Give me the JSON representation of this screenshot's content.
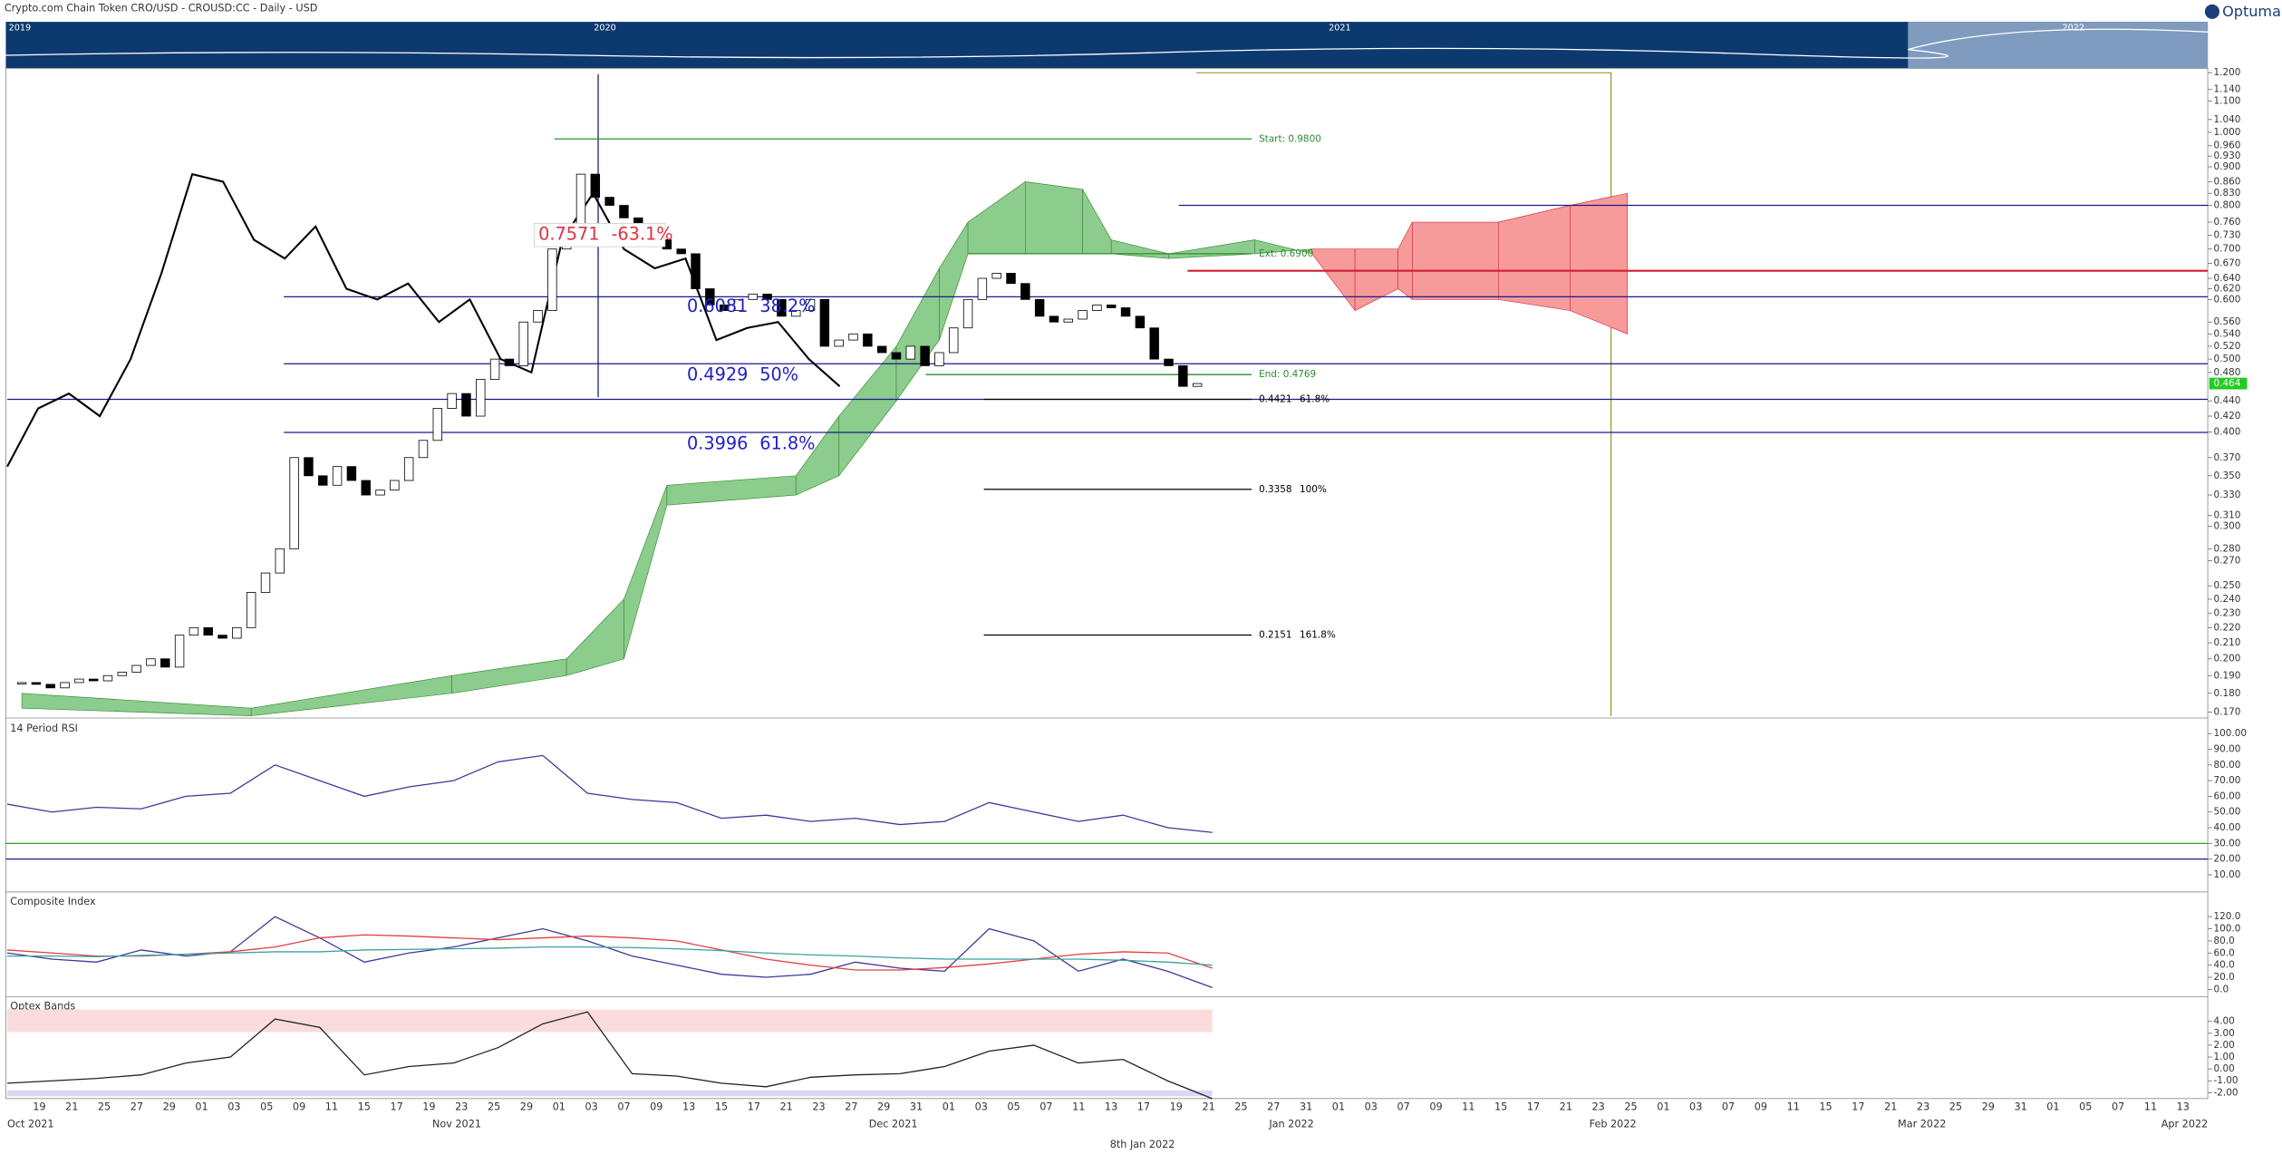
{
  "header": {
    "title": "Crypto.com Chain Token CRO/USD - CROUSD:CC - Daily - USD",
    "logo": "Optuma"
  },
  "navigator": {
    "years": [
      "2019",
      "2020",
      "2021",
      "2022"
    ]
  },
  "x_axis": {
    "days": [
      "19",
      "21",
      "25",
      "27",
      "29",
      "01",
      "03",
      "05",
      "09",
      "11",
      "15",
      "17",
      "19",
      "23",
      "25",
      "29",
      "01",
      "03",
      "07",
      "09",
      "13",
      "15",
      "17",
      "21",
      "23",
      "27",
      "29",
      "31",
      "01",
      "03",
      "05",
      "07",
      "11",
      "13",
      "17",
      "19",
      "21",
      "25",
      "27",
      "31",
      "01",
      "03",
      "07",
      "09",
      "11",
      "15",
      "17",
      "21",
      "23",
      "25",
      "01",
      "03",
      "07",
      "09",
      "11",
      "15",
      "17",
      "21",
      "23",
      "25",
      "29",
      "31",
      "01",
      "05",
      "07",
      "11",
      "13"
    ],
    "months": [
      "Oct 2021",
      "Nov 2021",
      "Dec 2021",
      "Jan 2022",
      "Feb 2022",
      "Mar 2022",
      "Apr 2022"
    ]
  },
  "footer_date": "8th Jan 2022",
  "chart_data": [
    {
      "type": "candlestick",
      "log_scale": true,
      "up_color": "#ffffff",
      "down_color": "#000000",
      "values": [
        0.186,
        0.185,
        0.183,
        0.186,
        0.188,
        0.187,
        0.19,
        0.192,
        0.196,
        0.2,
        0.195,
        0.215,
        0.22,
        0.215,
        0.213,
        0.22,
        0.245,
        0.26,
        0.28,
        0.37,
        0.35,
        0.34,
        0.36,
        0.345,
        0.33,
        0.335,
        0.345,
        0.37,
        0.39,
        0.43,
        0.45,
        0.42,
        0.47,
        0.5,
        0.49,
        0.56,
        0.58,
        0.7,
        0.75,
        0.88,
        0.82,
        0.8,
        0.77,
        0.73,
        0.72,
        0.7,
        0.69,
        0.62,
        0.59,
        0.58,
        0.6,
        0.61,
        0.6,
        0.57,
        0.58,
        0.6,
        0.52,
        0.53,
        0.54,
        0.52,
        0.51,
        0.5,
        0.52,
        0.49,
        0.51,
        0.55,
        0.6,
        0.64,
        0.65,
        0.63,
        0.6,
        0.57,
        0.56,
        0.565,
        0.58,
        0.59,
        0.585,
        0.57,
        0.55,
        0.5,
        0.49,
        0.46,
        0.464
      ],
      "last_price": 0.464,
      "last_price_color": "#22cc22",
      "ylim": [
        0.168,
        1.216
      ],
      "yticks": [
        {
          "value": 1.2,
          "label": "1.200"
        },
        {
          "value": 1.14,
          "label": "1.140"
        },
        {
          "value": 1.1,
          "label": "1.100"
        },
        {
          "value": 1.04,
          "label": "1.040"
        },
        {
          "value": 1,
          "label": "1.000"
        },
        {
          "value": 0.96,
          "label": "0.960"
        },
        {
          "value": 0.93,
          "label": "0.930"
        },
        {
          "value": 0.9,
          "label": "0.900"
        },
        {
          "value": 0.86,
          "label": "0.860"
        },
        {
          "value": 0.83,
          "label": "0.830"
        },
        {
          "value": 0.8,
          "label": "0.800"
        },
        {
          "value": 0.76,
          "label": "0.760"
        },
        {
          "value": 0.73,
          "label": "0.730"
        },
        {
          "value": 0.7,
          "label": "0.700"
        },
        {
          "value": 0.67,
          "label": "0.670"
        },
        {
          "value": 0.64,
          "label": "0.640"
        },
        {
          "value": 0.62,
          "label": "0.620"
        },
        {
          "value": 0.6,
          "label": "0.600"
        },
        {
          "value": 0.56,
          "label": "0.560"
        },
        {
          "value": 0.54,
          "label": "0.540"
        },
        {
          "value": 0.52,
          "label": "0.520"
        },
        {
          "value": 0.5,
          "label": "0.500"
        },
        {
          "value": 0.48,
          "label": "0.480"
        },
        {
          "value": 0.44,
          "label": "0.440"
        },
        {
          "value": 0.42,
          "label": "0.420"
        },
        {
          "value": 0.4,
          "label": "0.400"
        },
        {
          "value": 0.37,
          "label": "0.370"
        },
        {
          "value": 0.35,
          "label": "0.350"
        },
        {
          "value": 0.33,
          "label": "0.330"
        },
        {
          "value": 0.31,
          "label": "0.310"
        },
        {
          "value": 0.3,
          "label": "0.300"
        },
        {
          "value": 0.28,
          "label": "0.280"
        },
        {
          "value": 0.27,
          "label": "0.270"
        },
        {
          "value": 0.25,
          "label": "0.250"
        },
        {
          "value": 0.24,
          "label": "0.240"
        },
        {
          "value": 0.23,
          "label": "0.230"
        },
        {
          "value": 0.22,
          "label": "0.220"
        },
        {
          "value": 0.21,
          "label": "0.210"
        },
        {
          "value": 0.2,
          "label": "0.200"
        },
        {
          "value": 0.19,
          "label": "0.190"
        },
        {
          "value": 0.18,
          "label": "0.180"
        },
        {
          "value": 0.17,
          "label": "0.170"
        }
      ],
      "lagging_line": {
        "color": "#000000",
        "values": [
          0.36,
          0.43,
          0.45,
          0.42,
          0.5,
          0.65,
          0.88,
          0.86,
          0.72,
          0.68,
          0.75,
          0.62,
          0.6,
          0.63,
          0.56,
          0.6,
          0.5,
          0.48,
          0.72,
          0.83,
          0.7,
          0.66,
          0.68,
          0.53,
          0.55,
          0.56,
          0.5,
          0.46
        ]
      },
      "cloud": {
        "up_color": "#8ccc8c",
        "down_color": "#f79a9a",
        "x": [
          0,
          16,
          30,
          38,
          42,
          45,
          54,
          57,
          61,
          64,
          66,
          70,
          74,
          76,
          80,
          86,
          90,
          93,
          96,
          97,
          103,
          108,
          112
        ],
        "span_a": [
          0.18,
          0.172,
          0.19,
          0.2,
          0.24,
          0.34,
          0.35,
          0.42,
          0.52,
          0.66,
          0.76,
          0.86,
          0.84,
          0.72,
          0.69,
          0.72,
          0.69,
          0.58,
          0.62,
          0.6,
          0.6,
          0.58,
          0.54
        ],
        "span_b": [
          0.172,
          0.168,
          0.18,
          0.19,
          0.2,
          0.32,
          0.33,
          0.35,
          0.44,
          0.53,
          0.69,
          0.69,
          0.69,
          0.69,
          0.68,
          0.69,
          0.7,
          0.7,
          0.7,
          0.76,
          0.76,
          0.8,
          0.83
        ]
      },
      "hlines": [
        {
          "value": 0.8,
          "color": "#1a1a8c"
        },
        {
          "value": 0.605,
          "color": "#1a1a8c"
        },
        {
          "value": 0.4929,
          "color": "#1a1a8c"
        },
        {
          "value": 0.4421,
          "color": "#1a1a8c"
        },
        {
          "value": 0.3996,
          "color": "#1a1a8c"
        },
        {
          "value": 0.655,
          "color": "#d02030"
        }
      ],
      "annotations": [
        {
          "value": 0.98,
          "label": "Start: 0.9800",
          "color": "#2e8b2e"
        },
        {
          "value": 0.69,
          "label": "Ext: 0.6900",
          "color": "#2e8b2e"
        },
        {
          "value": 0.4769,
          "label": "End: 0.4769",
          "color": "#2e8b2e"
        },
        {
          "value": 0.4421,
          "label": "0.4421",
          "note": "61.8%",
          "color": "#000000"
        },
        {
          "value": 0.3358,
          "label": "0.3358",
          "note": "100%",
          "color": "#000000"
        },
        {
          "value": 0.2151,
          "label": "0.2151",
          "note": "161.8%",
          "color": "#000000"
        }
      ],
      "fib_labels": [
        {
          "value": 0.7571,
          "label": "0.7571",
          "note": "-63.1%",
          "color": "#e03040"
        },
        {
          "value": 0.6081,
          "label": "0.6081",
          "note": "38.2%",
          "color": "#2020c8"
        },
        {
          "value": 0.4929,
          "label": "0.4929",
          "note": "50%",
          "color": "#2020c8"
        },
        {
          "value": 0.3996,
          "label": "0.3996",
          "note": "61.8%",
          "color": "#2020c8"
        }
      ]
    },
    {
      "type": "line",
      "title": "14 Period RSI",
      "ylim": [
        0,
        108.5
      ],
      "yticks": [
        {
          "value": 100,
          "label": "100.00"
        },
        {
          "value": 90,
          "label": "90.00"
        },
        {
          "value": 80,
          "label": "80.00"
        },
        {
          "value": 70,
          "label": "70.00"
        },
        {
          "value": 60,
          "label": "60.00"
        },
        {
          "value": 50,
          "label": "50.00"
        },
        {
          "value": 40,
          "label": "40.00"
        },
        {
          "value": 30,
          "label": "30.00"
        },
        {
          "value": 20,
          "label": "20.00"
        },
        {
          "value": 10,
          "label": "10.00"
        }
      ],
      "hlines": [
        {
          "value": 30,
          "color": "#2e9b2e"
        },
        {
          "value": 20,
          "color": "#1a1a8c"
        }
      ],
      "series": [
        {
          "color": "#3a3a9a",
          "values": [
            55,
            50,
            53,
            52,
            60,
            62,
            80,
            70,
            60,
            66,
            70,
            82,
            86,
            62,
            58,
            56,
            46,
            48,
            44,
            46,
            42,
            44,
            56,
            50,
            44,
            48,
            40,
            37
          ]
        }
      ]
    },
    {
      "type": "line",
      "title": "Composite Index",
      "ylim": [
        -9.6,
        158.4
      ],
      "yticks": [
        {
          "value": 120,
          "label": "120.0"
        },
        {
          "value": 100,
          "label": "100.0"
        },
        {
          "value": 80,
          "label": "80.0"
        },
        {
          "value": 60,
          "label": "60.0"
        },
        {
          "value": 40,
          "label": "40.0"
        },
        {
          "value": 20,
          "label": "20.0"
        },
        {
          "value": 0,
          "label": "0.0"
        }
      ],
      "series": [
        {
          "color": "#3a3a9a",
          "values": [
            60,
            50,
            45,
            65,
            55,
            62,
            120,
            85,
            45,
            60,
            70,
            85,
            100,
            80,
            55,
            40,
            25,
            20,
            25,
            45,
            35,
            30,
            100,
            80,
            30,
            50,
            30,
            3
          ]
        },
        {
          "color": "#e04040",
          "values": [
            65,
            60,
            55,
            55,
            58,
            62,
            70,
            85,
            90,
            88,
            85,
            82,
            85,
            88,
            85,
            80,
            65,
            50,
            40,
            32,
            32,
            36,
            42,
            50,
            58,
            62,
            60,
            35
          ]
        },
        {
          "color": "#3aa0a0",
          "values": [
            55,
            55,
            54,
            56,
            58,
            60,
            62,
            62,
            65,
            66,
            67,
            68,
            70,
            70,
            69,
            67,
            64,
            60,
            57,
            55,
            52,
            50,
            50,
            50,
            50,
            48,
            45,
            40
          ]
        }
      ]
    },
    {
      "type": "line",
      "title": "Optex Bands",
      "ylim": [
        -2.49,
        5.96
      ],
      "yticks": [
        {
          "value": 4,
          "label": "4.00"
        },
        {
          "value": 3,
          "label": "3.00"
        },
        {
          "value": 2,
          "label": "2.00"
        },
        {
          "value": 1,
          "label": "1.00"
        },
        {
          "value": 0,
          "label": "0.00"
        },
        {
          "value": -1,
          "label": "-1.00"
        },
        {
          "value": -2,
          "label": "-2.00"
        }
      ],
      "bands": [
        {
          "upper": 5,
          "lower": 3.1,
          "color": "#fadcdc"
        },
        {
          "upper": -1.8,
          "lower": -2.3,
          "color": "#d8d8f4"
        }
      ],
      "series": [
        {
          "color": "#222222",
          "values": [
            -1.2,
            -1,
            -0.8,
            -0.5,
            0.5,
            1,
            4.2,
            3.5,
            -0.5,
            0.2,
            0.5,
            1.8,
            3.8,
            4.8,
            -0.4,
            -0.6,
            -1.2,
            -1.5,
            -0.7,
            -0.5,
            -0.4,
            0.2,
            1.5,
            2,
            0.5,
            0.8,
            -1,
            -2.5
          ]
        }
      ]
    }
  ]
}
